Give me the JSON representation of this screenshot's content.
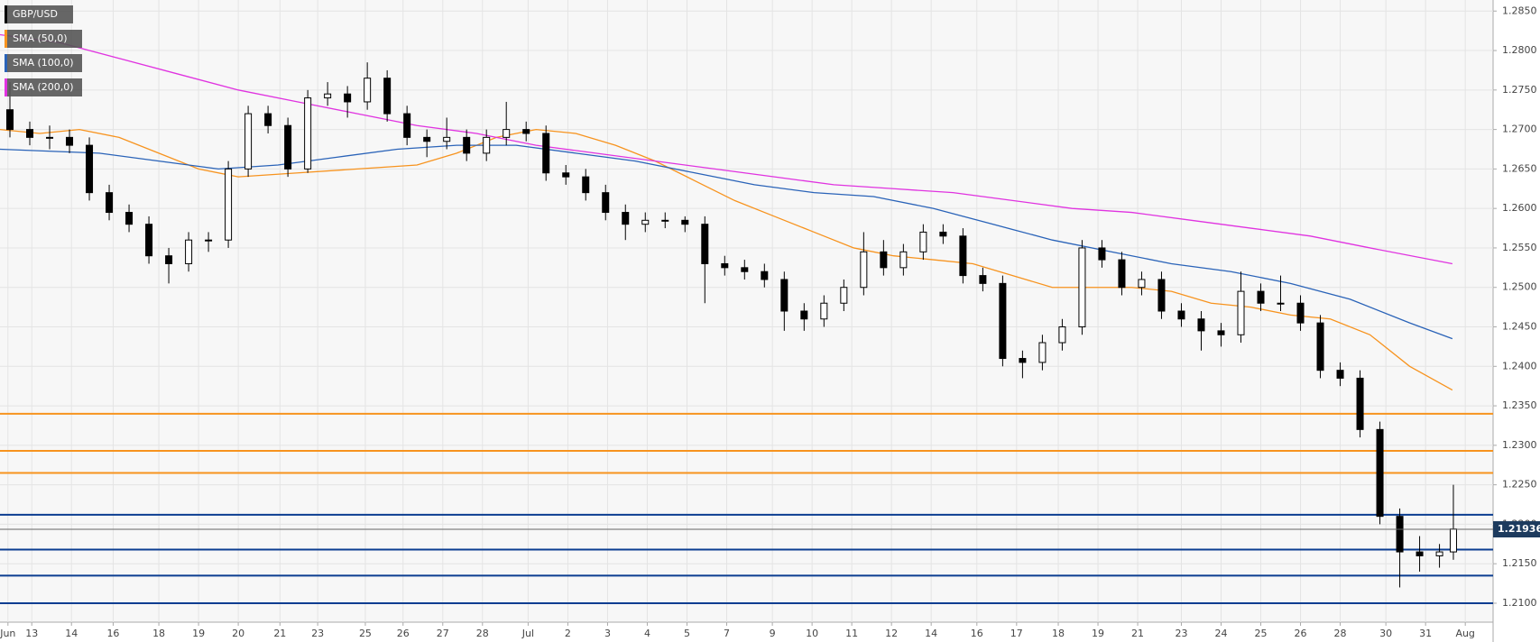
{
  "chart_data": {
    "type": "candlestick",
    "symbol": "GBP/USD",
    "up_color": "#ffffff",
    "down_color": "#000000",
    "xlim": [
      0,
      37.6
    ],
    "xticks": [
      {
        "value": 0.2,
        "label": "Jun"
      },
      {
        "value": 0.8,
        "label": "13"
      },
      {
        "value": 1.8,
        "label": "14"
      },
      {
        "value": 2.85,
        "label": "16"
      },
      {
        "value": 4,
        "label": "18"
      },
      {
        "value": 5,
        "label": "19"
      },
      {
        "value": 6,
        "label": "20"
      },
      {
        "value": 7.05,
        "label": "21"
      },
      {
        "value": 8,
        "label": "23"
      },
      {
        "value": 9.2,
        "label": "25"
      },
      {
        "value": 10.15,
        "label": "26"
      },
      {
        "value": 11.15,
        "label": "27"
      },
      {
        "value": 12.15,
        "label": "28"
      },
      {
        "value": 13.3,
        "label": "Jul"
      },
      {
        "value": 14.3,
        "label": "2"
      },
      {
        "value": 15.3,
        "label": "3"
      },
      {
        "value": 16.3,
        "label": "4"
      },
      {
        "value": 17.3,
        "label": "5"
      },
      {
        "value": 18.3,
        "label": "7"
      },
      {
        "value": 19.45,
        "label": "9"
      },
      {
        "value": 20.45,
        "label": "10"
      },
      {
        "value": 21.45,
        "label": "11"
      },
      {
        "value": 22.45,
        "label": "12"
      },
      {
        "value": 23.45,
        "label": "14"
      },
      {
        "value": 24.6,
        "label": "16"
      },
      {
        "value": 25.6,
        "label": "17"
      },
      {
        "value": 26.65,
        "label": "18"
      },
      {
        "value": 27.65,
        "label": "19"
      },
      {
        "value": 28.65,
        "label": "21"
      },
      {
        "value": 29.75,
        "label": "23"
      },
      {
        "value": 30.75,
        "label": "24"
      },
      {
        "value": 31.75,
        "label": "25"
      },
      {
        "value": 32.75,
        "label": "26"
      },
      {
        "value": 33.75,
        "label": "28"
      },
      {
        "value": 34.9,
        "label": "30"
      },
      {
        "value": 35.9,
        "label": "31"
      },
      {
        "value": 36.9,
        "label": "Aug"
      }
    ],
    "ylim": [
      1.2076,
      1.2864
    ],
    "yticks": [
      {
        "value": 1.21,
        "label": "1.2100"
      },
      {
        "value": 1.215,
        "label": "1.2150"
      },
      {
        "value": 1.22,
        "label": "1.2200"
      },
      {
        "value": 1.225,
        "label": "1.2250"
      },
      {
        "value": 1.23,
        "label": "1.2300"
      },
      {
        "value": 1.235,
        "label": "1.2350"
      },
      {
        "value": 1.24,
        "label": "1.2400"
      },
      {
        "value": 1.245,
        "label": "1.2450"
      },
      {
        "value": 1.25,
        "label": "1.2500"
      },
      {
        "value": 1.255,
        "label": "1.2550"
      },
      {
        "value": 1.26,
        "label": "1.2600"
      },
      {
        "value": 1.265,
        "label": "1.2650"
      },
      {
        "value": 1.27,
        "label": "1.2700"
      },
      {
        "value": 1.275,
        "label": "1.2750"
      },
      {
        "value": 1.28,
        "label": "1.2800"
      },
      {
        "value": 1.285,
        "label": "1.2850"
      }
    ],
    "grid": true,
    "x": [
      0.25,
      0.75,
      1.25,
      1.75,
      2.25,
      2.75,
      3.25,
      3.75,
      4.25,
      4.75,
      5.25,
      5.75,
      6.25,
      6.75,
      7.25,
      7.75,
      8.25,
      8.75,
      9.25,
      9.75,
      10.25,
      10.75,
      11.25,
      11.75,
      12.25,
      12.75,
      13.25,
      13.75,
      14.25,
      14.75,
      15.25,
      15.75,
      16.25,
      16.75,
      17.25,
      17.75,
      18.25,
      18.75,
      19.25,
      19.75,
      20.25,
      20.75,
      21.25,
      21.75,
      22.25,
      22.75,
      23.25,
      23.75,
      24.25,
      24.75,
      25.25,
      25.75,
      26.25,
      26.75,
      27.25,
      27.75,
      28.25,
      28.75,
      29.25,
      29.75,
      30.25,
      30.75,
      31.25,
      31.75,
      32.25,
      32.75,
      33.25,
      33.75,
      34.25,
      34.75,
      35.25,
      35.75,
      36.25,
      36.6
    ],
    "open": [
      1.2725,
      1.27,
      1.269,
      1.269,
      1.268,
      1.262,
      1.2595,
      1.258,
      1.254,
      1.253,
      1.256,
      1.256,
      1.265,
      1.272,
      1.2705,
      1.265,
      1.274,
      1.2745,
      1.2735,
      1.2765,
      1.272,
      1.269,
      1.2685,
      1.269,
      1.267,
      1.269,
      1.27,
      1.2695,
      1.2645,
      1.264,
      1.262,
      1.2595,
      1.258,
      1.2585,
      1.2585,
      1.258,
      1.253,
      1.2525,
      1.252,
      1.251,
      1.247,
      1.246,
      1.248,
      1.25,
      1.2545,
      1.2525,
      1.2545,
      1.257,
      1.2565,
      1.2515,
      1.2505,
      1.241,
      1.2405,
      1.243,
      1.245,
      1.255,
      1.2535,
      1.25,
      1.251,
      1.247,
      1.246,
      1.2445,
      1.244,
      1.2495,
      1.248,
      1.248,
      1.2455,
      1.2395,
      1.2385,
      1.232,
      1.221,
      1.2165,
      1.216,
      1.2165
    ],
    "high": [
      1.276,
      1.271,
      1.2705,
      1.27,
      1.269,
      1.263,
      1.2605,
      1.259,
      1.255,
      1.257,
      1.257,
      1.266,
      1.273,
      1.273,
      1.2715,
      1.275,
      1.276,
      1.2755,
      1.2785,
      1.2775,
      1.273,
      1.27,
      1.2715,
      1.27,
      1.27,
      1.2735,
      1.271,
      1.2705,
      1.2655,
      1.265,
      1.263,
      1.2605,
      1.2595,
      1.2595,
      1.259,
      1.259,
      1.254,
      1.2535,
      1.253,
      1.252,
      1.248,
      1.249,
      1.251,
      1.257,
      1.256,
      1.2555,
      1.258,
      1.258,
      1.2575,
      1.2525,
      1.2515,
      1.242,
      1.244,
      1.246,
      1.256,
      1.256,
      1.2545,
      1.252,
      1.252,
      1.248,
      1.247,
      1.2455,
      1.252,
      1.2505,
      1.2515,
      1.249,
      1.2465,
      1.2405,
      1.2395,
      1.233,
      1.222,
      1.2185,
      1.2175,
      1.225
    ],
    "low": [
      1.269,
      1.268,
      1.2675,
      1.267,
      1.261,
      1.2585,
      1.257,
      1.253,
      1.2505,
      1.252,
      1.2545,
      1.255,
      1.264,
      1.2695,
      1.264,
      1.2645,
      1.273,
      1.2715,
      1.2725,
      1.271,
      1.268,
      1.2665,
      1.2675,
      1.266,
      1.266,
      1.268,
      1.2685,
      1.2635,
      1.263,
      1.261,
      1.2585,
      1.256,
      1.257,
      1.2575,
      1.257,
      1.248,
      1.2515,
      1.251,
      1.25,
      1.2445,
      1.2445,
      1.245,
      1.247,
      1.249,
      1.2515,
      1.2515,
      1.2535,
      1.2555,
      1.2505,
      1.2495,
      1.24,
      1.2385,
      1.2395,
      1.242,
      1.244,
      1.2525,
      1.249,
      1.249,
      1.246,
      1.245,
      1.242,
      1.2425,
      1.243,
      1.247,
      1.247,
      1.2445,
      1.2385,
      1.2375,
      1.231,
      1.22,
      1.212,
      1.214,
      1.2145,
      1.2155
    ],
    "close": [
      1.27,
      1.269,
      1.269,
      1.268,
      1.262,
      1.2595,
      1.258,
      1.254,
      1.253,
      1.256,
      1.256,
      1.265,
      1.272,
      1.2705,
      1.265,
      1.274,
      1.2745,
      1.2735,
      1.2765,
      1.272,
      1.269,
      1.2685,
      1.269,
      1.267,
      1.269,
      1.27,
      1.2695,
      1.2645,
      1.264,
      1.262,
      1.2595,
      1.258,
      1.2585,
      1.2585,
      1.258,
      1.253,
      1.2525,
      1.252,
      1.251,
      1.247,
      1.246,
      1.248,
      1.25,
      1.2545,
      1.2525,
      1.2545,
      1.257,
      1.2565,
      1.2515,
      1.2505,
      1.241,
      1.2405,
      1.243,
      1.245,
      1.255,
      1.2535,
      1.25,
      1.251,
      1.247,
      1.246,
      1.2445,
      1.244,
      1.2495,
      1.248,
      1.248,
      1.2455,
      1.2395,
      1.2385,
      1.232,
      1.221,
      1.2165,
      1.216,
      1.2165,
      1.2194
    ],
    "series": [
      {
        "name": "SMA (50,0)",
        "color": "#f7931e",
        "x": [
          0,
          1,
          2,
          3,
          4,
          5,
          6,
          7.5,
          9,
          10.5,
          11.5,
          12.5,
          13.5,
          14.5,
          15.5,
          16.5,
          17.5,
          18.5,
          19.5,
          20.5,
          21.5,
          22.5,
          23.5,
          24.5,
          25.5,
          26.5,
          27.5,
          28.5,
          29.5,
          30.5,
          31.5,
          32.5,
          33.5,
          34.5,
          35.5,
          36.575
        ],
        "values": [
          1.27,
          1.2695,
          1.27,
          1.269,
          1.267,
          1.265,
          1.264,
          1.2645,
          1.265,
          1.2655,
          1.267,
          1.269,
          1.27,
          1.2695,
          1.268,
          1.266,
          1.2635,
          1.261,
          1.259,
          1.257,
          1.255,
          1.254,
          1.2535,
          1.253,
          1.2515,
          1.25,
          1.25,
          1.25,
          1.2495,
          1.248,
          1.2475,
          1.2465,
          1.246,
          1.244,
          1.24,
          1.237
        ]
      },
      {
        "name": "SMA (100,0)",
        "color": "#2a63b8",
        "x": [
          0,
          2.5,
          4,
          5.5,
          7,
          8.5,
          10,
          11.5,
          13,
          14.5,
          16,
          17.5,
          19,
          20.5,
          22,
          23.5,
          25,
          26.5,
          28,
          29.5,
          31,
          32.5,
          34,
          35.5,
          36.575
        ],
        "values": [
          1.2675,
          1.267,
          1.266,
          1.265,
          1.2655,
          1.2665,
          1.2675,
          1.268,
          1.268,
          1.267,
          1.266,
          1.2645,
          1.263,
          1.262,
          1.2615,
          1.26,
          1.258,
          1.256,
          1.2545,
          1.253,
          1.252,
          1.2505,
          1.2485,
          1.2455,
          1.2435
        ]
      },
      {
        "name": "SMA (200,0)",
        "color": "#e033e0",
        "x": [
          0,
          1.5,
          3,
          4.5,
          6,
          7.5,
          9,
          10.5,
          12,
          13.5,
          15,
          16.5,
          18,
          19.5,
          21,
          22.5,
          24,
          25.5,
          27,
          28.5,
          30,
          31.5,
          33,
          34.5,
          36.575
        ],
        "values": [
          1.282,
          1.281,
          1.279,
          1.277,
          1.275,
          1.2735,
          1.272,
          1.2705,
          1.2695,
          1.268,
          1.267,
          1.266,
          1.265,
          1.264,
          1.263,
          1.2625,
          1.262,
          1.261,
          1.26,
          1.2595,
          1.2585,
          1.2575,
          1.2565,
          1.255,
          1.253
        ]
      }
    ],
    "levels": [
      {
        "value": 1.234,
        "color": "#f7931e"
      },
      {
        "value": 1.2293,
        "color": "#f7931e"
      },
      {
        "value": 1.2265,
        "color": "#f7931e"
      },
      {
        "value": 1.2212,
        "color": "#0b3d91"
      },
      {
        "value": 1.2168,
        "color": "#0b3d91"
      },
      {
        "value": 1.2135,
        "color": "#0b3d91"
      },
      {
        "value": 1.21,
        "color": "#0b3d91"
      }
    ],
    "last_price": 1.21936
  }
}
